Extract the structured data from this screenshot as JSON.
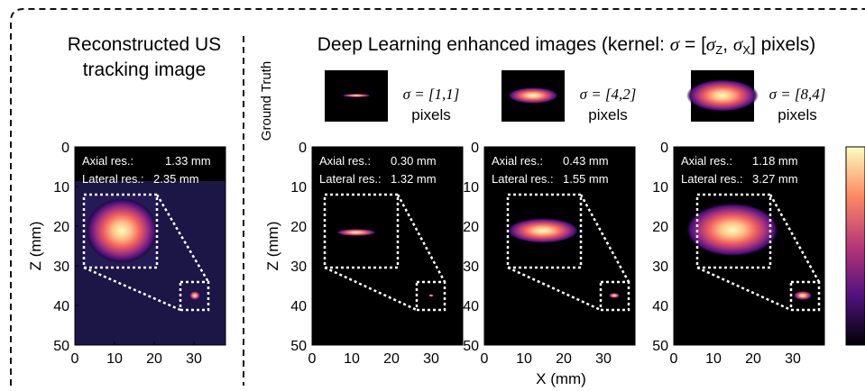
{
  "left_title": [
    "Reconstructed US",
    "tracking image"
  ],
  "right_title": [
    "Deep Learning enhanced images (kernel: ",
    "σ",
    " = [",
    "σ",
    "Z",
    ", ",
    "σ",
    "X",
    "] pixels)"
  ],
  "ground_truth_label": "Ground Truth",
  "ground_truth": [
    {
      "sigma": "σ = [1,1]",
      "unit": "pixels"
    },
    {
      "sigma": "σ = [4,2]",
      "unit": "pixels"
    },
    {
      "sigma": "σ = [8,4]",
      "unit": "pixels"
    }
  ],
  "axes": {
    "yticks": [
      0,
      10,
      20,
      30,
      40,
      50
    ],
    "xticks": [
      0,
      10,
      20,
      30
    ],
    "y_label": "Z (mm)",
    "x_label": "X (mm)"
  },
  "panels": [
    {
      "axial_label": "Axial res.:",
      "axial_value": "1.33 mm",
      "lateral_label": "Lateral res.:",
      "lateral_value": "2.35 mm"
    },
    {
      "axial_label": "Axial res.:",
      "axial_value": "0.30 mm",
      "lateral_label": "Lateral res.:",
      "lateral_value": "1.32 mm"
    },
    {
      "axial_label": "Axial res.:",
      "axial_value": "0.43 mm",
      "lateral_label": "Lateral res.:",
      "lateral_value": "1.55 mm"
    },
    {
      "axial_label": "Axial res.:",
      "axial_value": "1.18 mm",
      "lateral_label": "Lateral res.:",
      "lateral_value": "3.27 mm"
    }
  ]
}
